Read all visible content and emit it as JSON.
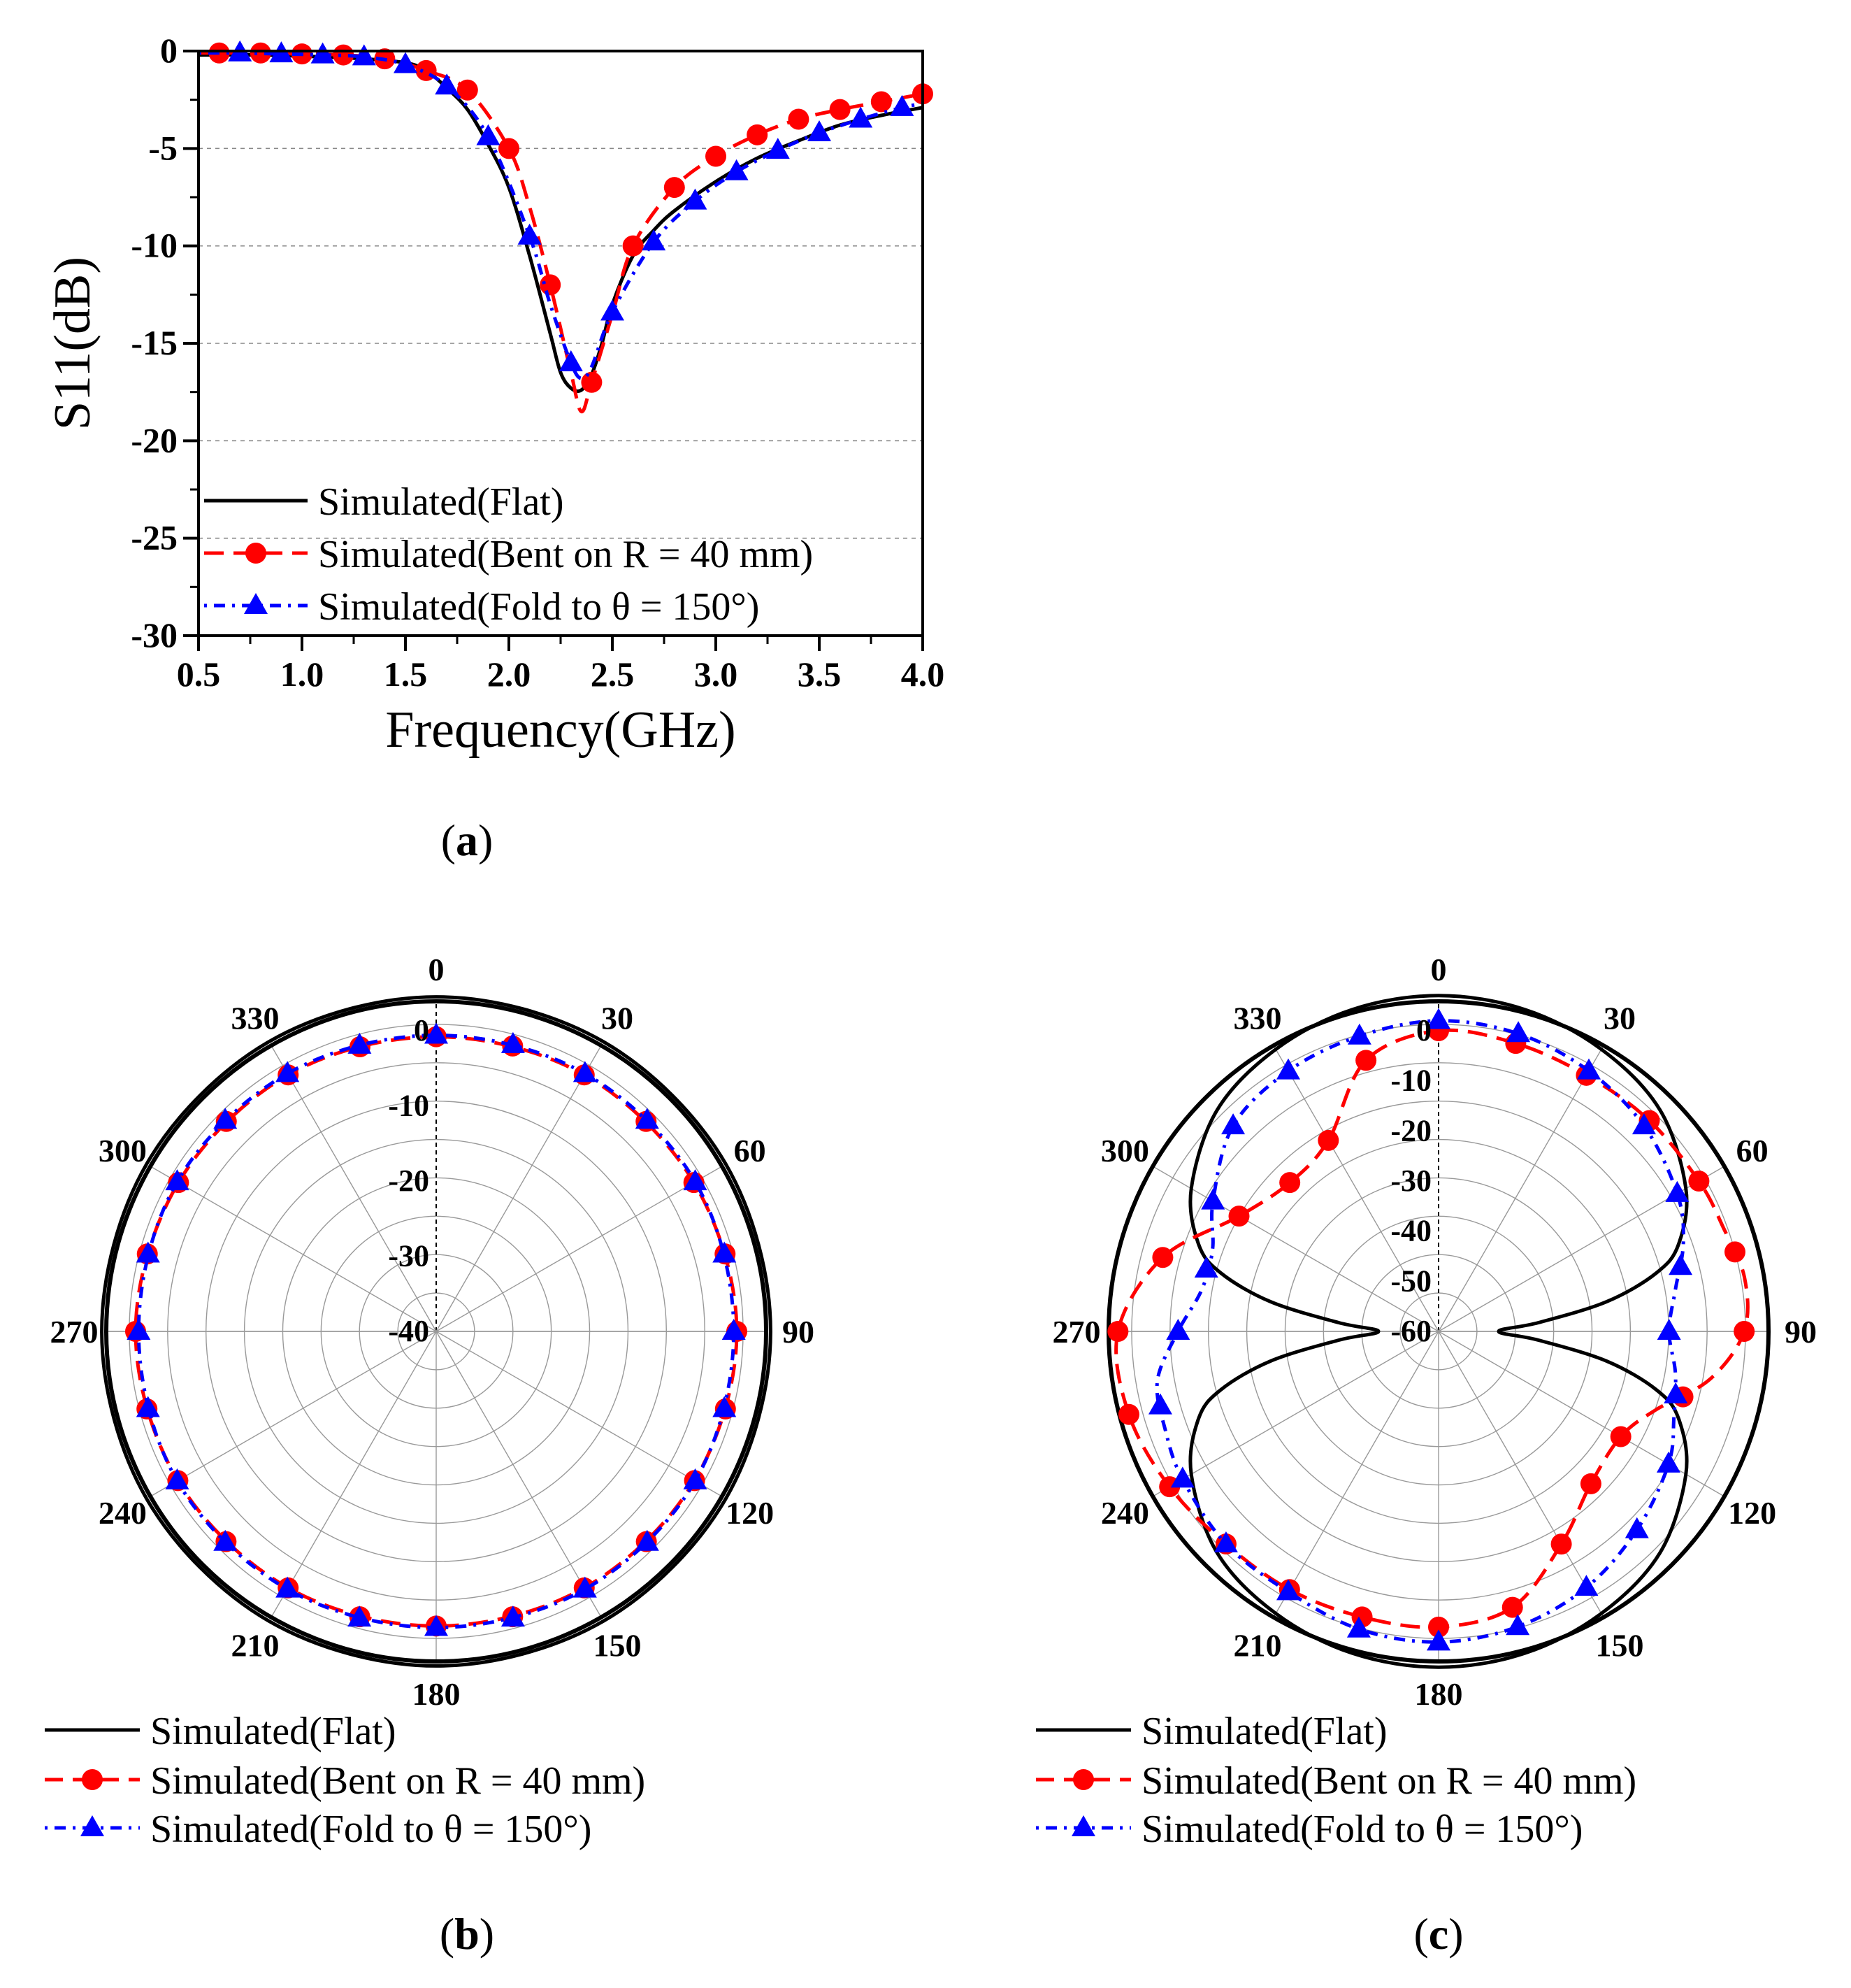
{
  "figure": {
    "label_a": "a",
    "label_b": "b",
    "label_c": "c",
    "colors": {
      "flat": "#000000",
      "bent": "#ff0000",
      "fold": "#0000ff"
    }
  },
  "legend": {
    "flat": "Simulated(Flat)",
    "bent": "Simulated(Bent on R = 40 mm)",
    "fold": "Simulated(Fold to θ = 150°)"
  },
  "chart_data": [
    {
      "type": "line",
      "panel": "a",
      "title": "",
      "xlabel": "Frequency(GHz)",
      "ylabel": "S11(dB)",
      "xlim": [
        0.5,
        4.0
      ],
      "ylim": [
        -30,
        0
      ],
      "xticks": [
        "0.5",
        "1.0",
        "1.5",
        "2.0",
        "2.5",
        "3.0",
        "3.5",
        "4.0"
      ],
      "yticks": [
        "0",
        "-5",
        "-10",
        "-15",
        "-20",
        "-25",
        "-30"
      ],
      "grid": "horizontal-dashed",
      "legend_position": "bottom-left",
      "series": [
        {
          "name": "Simulated(Flat)",
          "style": "solid",
          "x": [
            0.5,
            0.8,
            1.1,
            1.3,
            1.5,
            1.6,
            1.7,
            1.8,
            1.9,
            2.0,
            2.1,
            2.2,
            2.25,
            2.3,
            2.35,
            2.4,
            2.45,
            2.5,
            2.6,
            2.7,
            2.8,
            3.0,
            3.2,
            3.4,
            3.6,
            3.8,
            4.0
          ],
          "y": [
            -0.2,
            -0.2,
            -0.3,
            -0.4,
            -0.6,
            -1.0,
            -1.9,
            -3.0,
            -4.8,
            -7.0,
            -10.5,
            -14.5,
            -16.5,
            -17.3,
            -17.4,
            -16.6,
            -15.0,
            -13.0,
            -10.5,
            -9.2,
            -8.2,
            -6.7,
            -5.5,
            -4.6,
            -3.8,
            -3.3,
            -2.9
          ]
        },
        {
          "name": "Simulated(Bent on R = 40 mm)",
          "style": "dashed",
          "marker": "circle",
          "x": [
            0.5,
            0.6,
            0.8,
            1.0,
            1.2,
            1.4,
            1.6,
            1.8,
            2.0,
            2.1,
            2.2,
            2.3,
            2.35,
            2.4,
            2.5,
            2.6,
            2.8,
            3.0,
            3.2,
            3.4,
            3.6,
            3.8,
            4.0
          ],
          "y": [
            -0.1,
            -0.1,
            -0.1,
            -0.15,
            -0.2,
            -0.4,
            -1.0,
            -2.0,
            -5.0,
            -8.0,
            -12.0,
            -16.5,
            -18.5,
            -17.0,
            -13.5,
            -10.0,
            -7.0,
            -5.4,
            -4.3,
            -3.5,
            -3.0,
            -2.6,
            -2.2
          ]
        },
        {
          "name": "Simulated(Fold to θ = 150°)",
          "style": "dotted",
          "marker": "triangle",
          "x": [
            0.5,
            0.7,
            0.9,
            1.1,
            1.3,
            1.5,
            1.7,
            1.9,
            2.1,
            2.2,
            2.3,
            2.35,
            2.4,
            2.5,
            2.7,
            2.9,
            3.1,
            3.3,
            3.5,
            3.7,
            3.9,
            4.0
          ],
          "y": [
            -0.1,
            -0.1,
            -0.15,
            -0.2,
            -0.3,
            -0.7,
            -1.8,
            -4.4,
            -9.5,
            -13.0,
            -16.0,
            -16.8,
            -16.2,
            -13.4,
            -9.8,
            -7.7,
            -6.2,
            -5.1,
            -4.2,
            -3.5,
            -2.9,
            -2.7
          ]
        }
      ]
    },
    {
      "type": "polar",
      "panel": "b",
      "rlim": [
        -40,
        0
      ],
      "rticks": [
        "0",
        "-10",
        "-20",
        "-30",
        "-40"
      ],
      "angle_labels": [
        "0",
        "30",
        "60",
        "90",
        "120",
        "150",
        "180",
        "210",
        "240",
        "270",
        "300",
        "330"
      ],
      "legend_position": "bottom-left",
      "series": [
        {
          "name": "Simulated(Flat)",
          "style": "solid",
          "angle": [
            0,
            30,
            60,
            90,
            120,
            150,
            180,
            210,
            240,
            270,
            300,
            330
          ],
          "value": [
            4.5,
            4.5,
            4.5,
            4.5,
            4.5,
            4.5,
            4.5,
            4.5,
            4.5,
            4.5,
            4.5,
            4.5
          ]
        },
        {
          "name": "Simulated(Bent on R = 40 mm)",
          "style": "dashed",
          "marker": "circle",
          "angle": [
            0,
            30,
            60,
            90,
            120,
            150,
            180,
            210,
            240,
            270,
            300,
            330
          ],
          "value": [
            -0.8,
            -0.6,
            -0.4,
            0.0,
            -0.3,
            -0.6,
            -0.8,
            -0.6,
            -0.3,
            0.0,
            -0.4,
            -0.6
          ]
        },
        {
          "name": "Simulated(Fold to θ = 150°)",
          "style": "dotted",
          "marker": "triangle",
          "angle": [
            0,
            30,
            60,
            90,
            120,
            150,
            180,
            210,
            240,
            270,
            300,
            330
          ],
          "value": [
            -0.6,
            -0.4,
            -0.2,
            -0.4,
            -0.2,
            -0.4,
            -0.6,
            -0.4,
            -0.2,
            -0.4,
            -0.2,
            -0.4
          ]
        }
      ]
    },
    {
      "type": "polar",
      "panel": "c",
      "rlim": [
        -60,
        0
      ],
      "rticks": [
        "0",
        "-10",
        "-20",
        "-30",
        "-40",
        "-50",
        "-60"
      ],
      "angle_labels": [
        "0",
        "30",
        "60",
        "90",
        "120",
        "150",
        "180",
        "210",
        "240",
        "270",
        "300",
        "330"
      ],
      "legend_position": "bottom-left",
      "series": [
        {
          "name": "Simulated(Flat)",
          "style": "solid",
          "angle": [
            0,
            15,
            30,
            45,
            60,
            70,
            75,
            80,
            85,
            90,
            95,
            100,
            105,
            110,
            120,
            135,
            150,
            165,
            180,
            195,
            210,
            225,
            240,
            250,
            255,
            260,
            265,
            270,
            275,
            280,
            285,
            290,
            300,
            315,
            330,
            345,
            360
          ],
          "value": [
            7,
            6.5,
            5,
            2.5,
            -3,
            -9,
            -15,
            -26,
            -40,
            -48,
            -40,
            -26,
            -15,
            -9,
            -3,
            2.5,
            5,
            6.5,
            7,
            6.5,
            5,
            2.5,
            -3,
            -9,
            -15,
            -26,
            -40,
            -48,
            -40,
            -26,
            -15,
            -9,
            -3,
            2.5,
            5,
            6.5,
            7
          ]
        },
        {
          "name": "Simulated(Bent on R = 40 mm)",
          "style": "dashed",
          "marker": "circle",
          "angle": [
            0,
            15,
            30,
            45,
            60,
            70,
            80,
            90,
            100,
            110,
            120,
            135,
            150,
            165,
            180,
            195,
            210,
            225,
            240,
            255,
            270,
            285,
            300,
            315,
            330,
            345,
            360
          ],
          "value": [
            0,
            -0.5,
            -1,
            -0.5,
            0,
            0.5,
            2,
            1,
            -5,
            -14,
            -18,
            -17,
            -11,
            -3,
            -1,
            -1,
            -0.5,
            0,
            2,
            4,
            4,
            -3,
            -14,
            -18,
            -16,
            -4,
            0
          ]
        },
        {
          "name": "Simulated(Fold to θ = 150°)",
          "style": "dotted",
          "marker": "triangle",
          "angle": [
            0,
            15,
            30,
            45,
            60,
            70,
            80,
            90,
            100,
            110,
            120,
            135,
            150,
            165,
            180,
            195,
            210,
            225,
            240,
            250,
            260,
            270,
            280,
            290,
            300,
            315,
            330,
            345,
            360
          ],
          "value": [
            2,
            1.5,
            0,
            -2,
            -5,
            -8,
            -12,
            -14,
            -12,
            -10,
            -7,
            -4,
            -1,
            1,
            2,
            1.5,
            0,
            0,
            -1,
            -2,
            -3,
            -8,
            -12,
            -12,
            -8,
            -2,
            0,
            1,
            2
          ]
        }
      ]
    }
  ]
}
